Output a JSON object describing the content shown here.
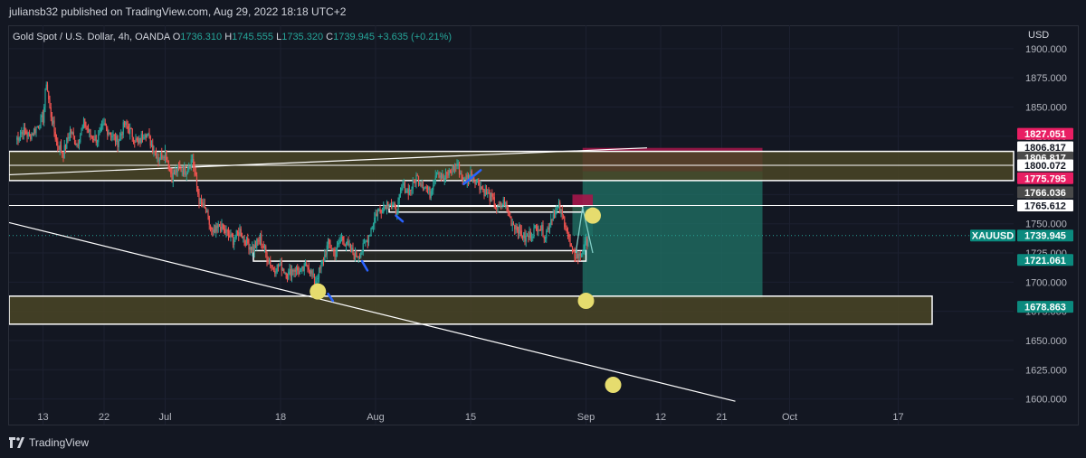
{
  "publisher_line": "juliansb32 published on TradingView.com, Aug 29, 2022 18:18 UTC+2",
  "footer": {
    "brand": "TradingView",
    "logo_icon": "tradingview-logo-icon"
  },
  "colors": {
    "background": "#131722",
    "up": "#26a69a",
    "down": "#ef5350",
    "zone_fill": "#4a4526",
    "target_fill": "#1f6e63",
    "stop_fill": "#a6164a",
    "price_tag": "#0b8a7e",
    "marker_yellow": "#e6dc6e",
    "stroke_blue": "#2962ff"
  },
  "chart_data": {
    "type": "candlestick",
    "symbol": "Gold Spot / U.S. Dollar, 4h, OANDA",
    "ohlc": {
      "o_label": "O",
      "o": "1736.310",
      "h_label": "H",
      "h": "1745.555",
      "l_label": "L",
      "l": "1735.320",
      "c_label": "C",
      "c": "1739.945",
      "change": "+3.635 (+0.21%)"
    },
    "currency": "USD",
    "ylim": [
      1578,
      1920
    ],
    "y_ticks": [
      "1900.000",
      "1875.000",
      "1850.000",
      "1825.000",
      "1800.000",
      "1775.000",
      "1750.000",
      "1725.000",
      "1700.000",
      "1675.000",
      "1650.000",
      "1625.000",
      "1600.000"
    ],
    "x_ticks": [
      {
        "label": "13",
        "d": 0
      },
      {
        "label": "22",
        "d": 9
      },
      {
        "label": "Jul",
        "d": 18
      },
      {
        "label": "18",
        "d": 35
      },
      {
        "label": "Aug",
        "d": 49
      },
      {
        "label": "15",
        "d": 63
      },
      {
        "label": "Sep",
        "d": 80
      },
      {
        "label": "12",
        "d": 91
      },
      {
        "label": "21",
        "d": 100
      },
      {
        "label": "Oct",
        "d": 110
      },
      {
        "label": "17",
        "d": 126
      }
    ],
    "price_path": [
      [
        -4,
        1822
      ],
      [
        -3,
        1830
      ],
      [
        -2,
        1825
      ],
      [
        -1,
        1832
      ],
      [
        0,
        1840
      ],
      [
        0.5,
        1872
      ],
      [
        1,
        1848
      ],
      [
        2,
        1820
      ],
      [
        3,
        1810
      ],
      [
        4,
        1830
      ],
      [
        5,
        1818
      ],
      [
        6,
        1836
      ],
      [
        7,
        1826
      ],
      [
        8,
        1822
      ],
      [
        9,
        1834
      ],
      [
        10,
        1827
      ],
      [
        11,
        1820
      ],
      [
        12,
        1835
      ],
      [
        13,
        1828
      ],
      [
        14,
        1818
      ],
      [
        15,
        1830
      ],
      [
        16,
        1818
      ],
      [
        17,
        1806
      ],
      [
        18,
        1812
      ],
      [
        19,
        1790
      ],
      [
        20,
        1798
      ],
      [
        21,
        1795
      ],
      [
        22,
        1806
      ],
      [
        23,
        1770
      ],
      [
        24,
        1760
      ],
      [
        25,
        1740
      ],
      [
        26,
        1748
      ],
      [
        27,
        1742
      ],
      [
        28,
        1736
      ],
      [
        29,
        1744
      ],
      [
        30,
        1734
      ],
      [
        31,
        1728
      ],
      [
        32,
        1738
      ],
      [
        33,
        1722
      ],
      [
        34,
        1711
      ],
      [
        35,
        1715
      ],
      [
        36,
        1706
      ],
      [
        37,
        1712
      ],
      [
        38,
        1708
      ],
      [
        39,
        1716
      ],
      [
        40,
        1700
      ],
      [
        41,
        1713
      ],
      [
        42,
        1733
      ],
      [
        43,
        1725
      ],
      [
        44,
        1738
      ],
      [
        45,
        1730
      ],
      [
        46,
        1722
      ],
      [
        47,
        1727
      ],
      [
        48,
        1740
      ],
      [
        49,
        1758
      ],
      [
        50,
        1764
      ],
      [
        51,
        1770
      ],
      [
        52,
        1760
      ],
      [
        53,
        1782
      ],
      [
        54,
        1778
      ],
      [
        55,
        1790
      ],
      [
        56,
        1784
      ],
      [
        57,
        1776
      ],
      [
        58,
        1796
      ],
      [
        59,
        1788
      ],
      [
        60,
        1795
      ],
      [
        61,
        1801
      ],
      [
        62,
        1786
      ],
      [
        63,
        1793
      ],
      [
        64,
        1786
      ],
      [
        65,
        1778
      ],
      [
        66,
        1772
      ],
      [
        67,
        1763
      ],
      [
        68,
        1769
      ],
      [
        69,
        1752
      ],
      [
        70,
        1746
      ],
      [
        71,
        1737
      ],
      [
        72,
        1742
      ],
      [
        73,
        1749
      ],
      [
        74,
        1740
      ],
      [
        75,
        1757
      ],
      [
        76,
        1764
      ],
      [
        77,
        1749
      ],
      [
        78,
        1724
      ],
      [
        79,
        1722
      ],
      [
        80,
        1733
      ],
      [
        80.5,
        1739.945
      ]
    ],
    "zones": [
      {
        "type": "supply",
        "d0": -5,
        "d1": 143,
        "top": 1812,
        "bottom": 1787
      },
      {
        "type": "rect",
        "d0": 31,
        "d1": 80,
        "top": 1727,
        "bottom": 1718
      },
      {
        "type": "rect",
        "d0": 51,
        "d1": 79.5,
        "top": 1765,
        "bottom": 1760
      },
      {
        "type": "demand",
        "d0": -5,
        "d1": 131,
        "top": 1688,
        "bottom": 1664
      }
    ],
    "trendlines": [
      {
        "from": [
          -5,
          1792
        ],
        "to": [
          89,
          1815
        ]
      },
      {
        "from": [
          -5,
          1751
        ],
        "to": [
          102,
          1598
        ]
      }
    ],
    "horizontal_lines": [
      1800.072,
      1765.612
    ],
    "dotted_line": 1739.945,
    "position": {
      "d0": 79.5,
      "d1": 106,
      "entry": 1795,
      "stop": 1815,
      "target": 1686
    },
    "position_small": {
      "d0": 78,
      "d1": 81,
      "entry": 1765,
      "stop": 1775
    },
    "arrow_path": [
      [
        78.5,
        1725
      ],
      [
        79.5,
        1764
      ],
      [
        81,
        1725
      ]
    ],
    "markers": [
      {
        "d": 40.5,
        "price": 1692
      },
      {
        "d": 81,
        "price": 1757
      },
      {
        "d": 80,
        "price": 1684
      },
      {
        "d": 84,
        "price": 1612
      }
    ],
    "blue_strokes": [
      [
        [
          53,
          1752
        ],
        [
          52,
          1757
        ]
      ],
      [
        [
          42,
          1690
        ],
        [
          42.7,
          1684
        ]
      ],
      [
        [
          47,
          1718
        ],
        [
          47.8,
          1710
        ]
      ],
      [
        [
          62,
          1784
        ],
        [
          64.5,
          1796
        ]
      ]
    ],
    "price_labels": [
      {
        "value": "1827.051",
        "price": 1827.051,
        "bg": "#e91e63",
        "fg": "#ffffff"
      },
      {
        "value": "1806.817",
        "price": 1815.5,
        "bg": "#ffffff",
        "fg": "#131722"
      },
      {
        "value": "1806.817",
        "price": 1806.817,
        "bg": "#4a4a4a",
        "fg": "#ffffff"
      },
      {
        "value": "1800.072",
        "price": 1800.072,
        "bg": "#ffffff",
        "fg": "#131722"
      },
      {
        "value": "1775.795",
        "price": 1789,
        "bg": "#e91e63",
        "fg": "#ffffff"
      },
      {
        "value": "1766.036",
        "price": 1777,
        "bg": "#4a4a4a",
        "fg": "#ffffff"
      },
      {
        "value": "1765.612",
        "price": 1765.612,
        "bg": "#ffffff",
        "fg": "#131722"
      },
      {
        "value": "1739.945",
        "price": 1739.945,
        "bg": "#0b8a7e",
        "fg": "#ffffff",
        "tag": "XAUUSD"
      },
      {
        "value": "1721.061",
        "price": 1719,
        "bg": "#0b8a7e",
        "fg": "#ffffff"
      },
      {
        "value": "1678.863",
        "price": 1678.863,
        "bg": "#0b8a7e",
        "fg": "#ffffff"
      }
    ]
  }
}
